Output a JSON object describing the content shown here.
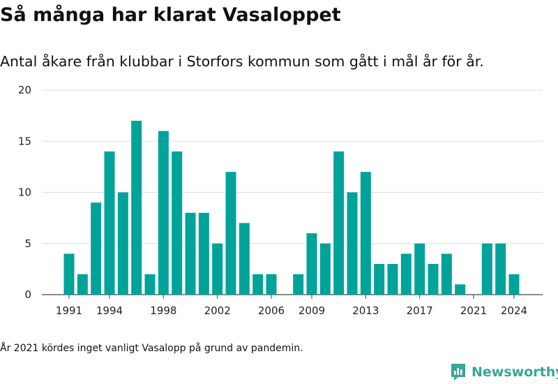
{
  "title": "Så många har klarat Vasaloppet",
  "subtitle": "Antal åkare från klubbar i Storfors kommun som gått i mål år för år.",
  "note": "År 2021 kördes inget vanligt Vasalopp på grund av pandemin.",
  "brand": {
    "name": "Newsworthy",
    "color": "#3aa59a",
    "icon": "newsworthy-logo-icon"
  },
  "chart_data": {
    "type": "bar",
    "color": "#00a39a",
    "x": [
      1991,
      1992,
      1993,
      1994,
      1995,
      1996,
      1997,
      1998,
      1999,
      2000,
      2001,
      2002,
      2003,
      2004,
      2005,
      2006,
      2007,
      2008,
      2009,
      2010,
      2011,
      2012,
      2013,
      2014,
      2015,
      2016,
      2017,
      2018,
      2019,
      2020,
      2021,
      2022,
      2023,
      2024
    ],
    "values": [
      4,
      2,
      9,
      14,
      10,
      17,
      2,
      16,
      14,
      8,
      8,
      5,
      12,
      7,
      2,
      2,
      0,
      2,
      6,
      5,
      14,
      10,
      12,
      3,
      3,
      4,
      5,
      3,
      4,
      1,
      0,
      5,
      5,
      2
    ],
    "x_tick_labels": [
      "1991",
      "1994",
      "1998",
      "2002",
      "2006",
      "2009",
      "2013",
      "2017",
      "2021",
      "2024"
    ],
    "y_ticks": [
      0,
      5,
      10,
      15,
      20
    ],
    "ylim": [
      0,
      20
    ],
    "grid": true
  }
}
